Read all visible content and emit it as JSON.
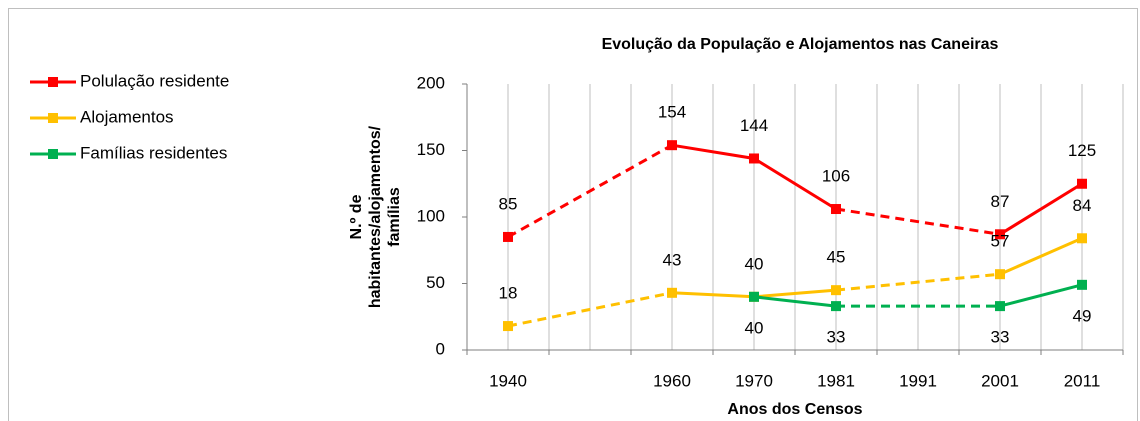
{
  "chart_data": {
    "type": "line",
    "title": "Evolução da População e Alojamentos nas Caneiras",
    "y_label": [
      "N.º de",
      "habitantes/alojamentos/",
      "famílias"
    ],
    "x_label": "Anos dos Censos",
    "categories": [
      "1940",
      null,
      "1960",
      "1970",
      "1981",
      "1991",
      "2001",
      "2011"
    ],
    "series": [
      {
        "name": "Polulação residente",
        "color": "#ff0000",
        "values": [
          85,
          null,
          154,
          144,
          106,
          null,
          87,
          125
        ]
      },
      {
        "name": "Alojamentos",
        "color": "#ffc000",
        "values": [
          18,
          null,
          43,
          40,
          45,
          null,
          57,
          84
        ]
      },
      {
        "name": "Famílias residentes",
        "color": "#00b050",
        "values": [
          null,
          null,
          null,
          40,
          33,
          null,
          33,
          49
        ]
      }
    ],
    "ylim": [
      0,
      200
    ],
    "yticks": [
      0,
      50,
      100,
      150,
      200
    ],
    "grid": true,
    "legend": "left"
  }
}
